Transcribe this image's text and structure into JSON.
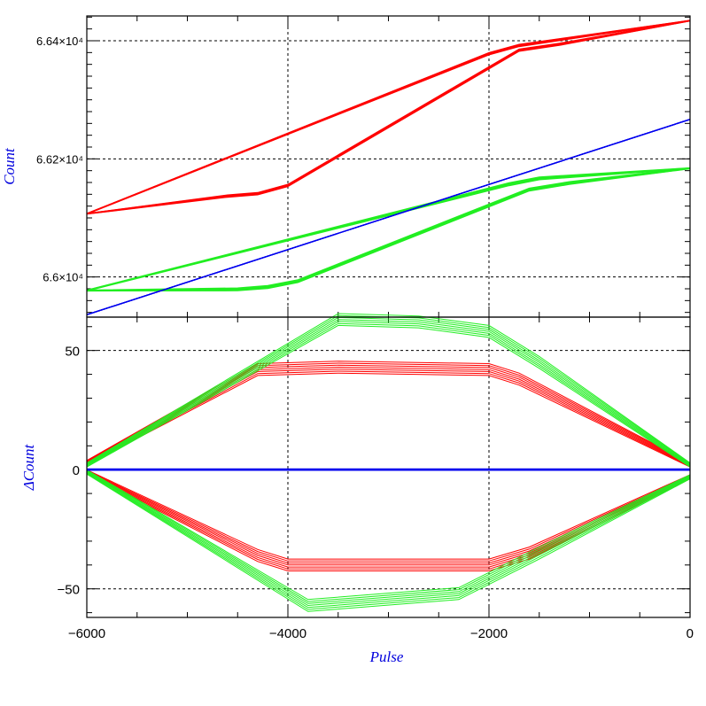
{
  "colors": {
    "red": "#ff0000",
    "green": "#22ee22",
    "blue": "#0000ee",
    "axis_title": "#0000dd",
    "frame": "#000000"
  },
  "chart_data": [
    {
      "type": "line",
      "panel": "top",
      "ylabel": "Count",
      "xlim": [
        -6000,
        0
      ],
      "ylim": [
        65932,
        66442
      ],
      "yticks_major": [
        66000,
        66200,
        66400
      ],
      "ytick_labels": [
        "6.6×10⁴",
        "6.62×10⁴",
        "6.64×10⁴"
      ],
      "grid": true,
      "series": [
        {
          "color": "red",
          "x": [
            -6000,
            -4600,
            -4300,
            -4000,
            -1700,
            -1300,
            0
          ],
          "y": [
            66107,
            66137,
            66141,
            66155,
            66384,
            66394,
            66434
          ]
        },
        {
          "color": "red",
          "x": [
            0,
            -1700,
            -2000,
            -6000
          ],
          "y": [
            66434,
            66392,
            66378,
            66107
          ]
        },
        {
          "color": "green",
          "x": [
            -6000,
            -4500,
            -4200,
            -3900,
            -1600,
            -1200,
            0
          ],
          "y": [
            65977,
            65979,
            65983,
            65993,
            66148,
            66159,
            66184
          ]
        },
        {
          "color": "green",
          "x": [
            0,
            -1500,
            -1800,
            -6000
          ],
          "y": [
            66184,
            66167,
            66157,
            65977
          ]
        },
        {
          "color": "blue",
          "x": [
            -6000,
            0
          ],
          "y": [
            65936,
            66267
          ]
        }
      ]
    },
    {
      "type": "line",
      "panel": "bottom",
      "xlabel": "Pulse",
      "ylabel": "ΔCount",
      "xlim": [
        -6000,
        0
      ],
      "ylim": [
        -62,
        64
      ],
      "xticks_major": [
        -6000,
        -4000,
        -2000,
        0
      ],
      "xtick_labels": [
        "−6000",
        "−4000",
        "−2000",
        "0"
      ],
      "yticks_major": [
        -50,
        0,
        50
      ],
      "ytick_labels": [
        "−50",
        "0",
        "50"
      ],
      "grid": true,
      "series": [
        {
          "color": "red",
          "x": [
            -6000,
            -4300,
            -3500,
            -2000,
            -1700,
            0
          ],
          "y": [
            3,
            42,
            43,
            42,
            38,
            2
          ]
        },
        {
          "color": "red",
          "x": [
            0,
            -1600,
            -2000,
            -4000,
            -4300,
            -6000
          ],
          "y": [
            -3,
            -35,
            -40,
            -40,
            -36,
            -1
          ]
        },
        {
          "color": "green",
          "x": [
            -6000,
            -3500,
            -2700,
            -2000,
            -1500,
            0
          ],
          "y": [
            2,
            63,
            62,
            58,
            45,
            2
          ]
        },
        {
          "color": "green",
          "x": [
            0,
            -1500,
            -2300,
            -3800,
            -6000
          ],
          "y": [
            -3,
            -35,
            -52,
            -57,
            -1
          ]
        },
        {
          "color": "blue",
          "x": [
            -6000,
            0
          ],
          "y": [
            0,
            0
          ]
        }
      ]
    }
  ]
}
